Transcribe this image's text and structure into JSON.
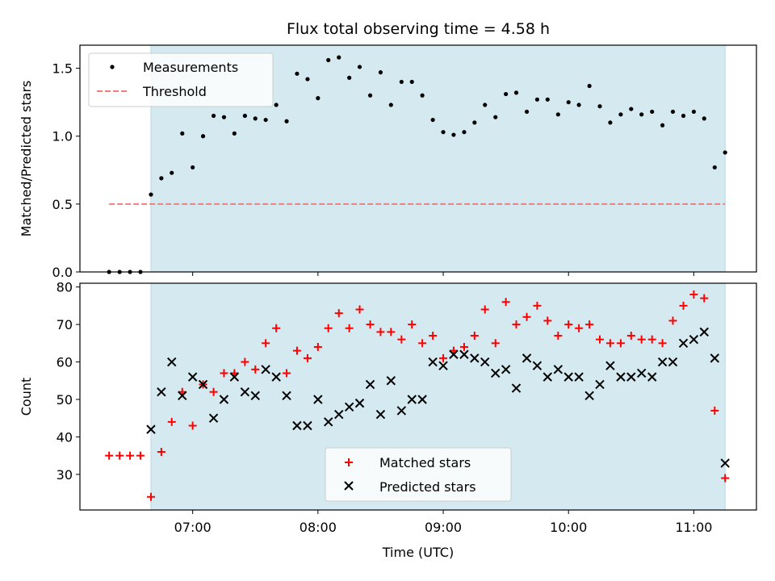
{
  "chart_data": [
    {
      "type": "scatter",
      "title": "Flux total observing time = 4.58 h",
      "xlabel": "",
      "ylabel": "Matched/Predicted stars",
      "xlim": [
        6.1,
        11.5
      ],
      "ylim": [
        0.0,
        1.67
      ],
      "yticks": [
        {
          "value": 0.0,
          "label": "0.0"
        },
        {
          "value": 0.5,
          "label": "0.5"
        },
        {
          "value": 1.0,
          "label": "1.0"
        },
        {
          "value": 1.5,
          "label": "1.5"
        }
      ],
      "xticks": [
        7,
        8,
        9,
        10,
        11
      ],
      "observing_window": {
        "start": 6.667,
        "end": 11.25,
        "color": "#d4eaf0"
      },
      "legend": {
        "position": "top-left",
        "entries": [
          "Measurements",
          "Threshold"
        ]
      },
      "threshold": {
        "name": "Threshold",
        "value": 0.5,
        "x_range": [
          6.333,
          11.25
        ],
        "color": "#f07f7f"
      },
      "series": [
        {
          "name": "Measurements",
          "marker": "dot",
          "color": "#000000",
          "points": [
            [
              6.333,
              0.0
            ],
            [
              6.417,
              0.0
            ],
            [
              6.5,
              0.0
            ],
            [
              6.583,
              0.0
            ],
            [
              6.667,
              0.57
            ],
            [
              6.75,
              0.69
            ],
            [
              6.833,
              0.73
            ],
            [
              6.917,
              1.02
            ],
            [
              7.0,
              0.77
            ],
            [
              7.083,
              1.0
            ],
            [
              7.167,
              1.15
            ],
            [
              7.25,
              1.14
            ],
            [
              7.333,
              1.02
            ],
            [
              7.417,
              1.15
            ],
            [
              7.5,
              1.13
            ],
            [
              7.583,
              1.12
            ],
            [
              7.667,
              1.23
            ],
            [
              7.75,
              1.11
            ],
            [
              7.833,
              1.46
            ],
            [
              7.917,
              1.42
            ],
            [
              8.0,
              1.28
            ],
            [
              8.083,
              1.56
            ],
            [
              8.167,
              1.58
            ],
            [
              8.25,
              1.43
            ],
            [
              8.333,
              1.51
            ],
            [
              8.417,
              1.3
            ],
            [
              8.5,
              1.47
            ],
            [
              8.583,
              1.23
            ],
            [
              8.667,
              1.4
            ],
            [
              8.75,
              1.4
            ],
            [
              8.833,
              1.3
            ],
            [
              8.917,
              1.12
            ],
            [
              9.0,
              1.03
            ],
            [
              9.083,
              1.01
            ],
            [
              9.167,
              1.03
            ],
            [
              9.25,
              1.1
            ],
            [
              9.333,
              1.23
            ],
            [
              9.417,
              1.14
            ],
            [
              9.5,
              1.31
            ],
            [
              9.583,
              1.32
            ],
            [
              9.667,
              1.18
            ],
            [
              9.75,
              1.27
            ],
            [
              9.833,
              1.27
            ],
            [
              9.917,
              1.16
            ],
            [
              10.0,
              1.25
            ],
            [
              10.083,
              1.23
            ],
            [
              10.167,
              1.37
            ],
            [
              10.25,
              1.22
            ],
            [
              10.333,
              1.1
            ],
            [
              10.417,
              1.16
            ],
            [
              10.5,
              1.2
            ],
            [
              10.583,
              1.16
            ],
            [
              10.667,
              1.18
            ],
            [
              10.75,
              1.08
            ],
            [
              10.833,
              1.18
            ],
            [
              10.917,
              1.15
            ],
            [
              11.0,
              1.18
            ],
            [
              11.083,
              1.13
            ],
            [
              11.167,
              0.77
            ],
            [
              11.25,
              0.88
            ]
          ]
        }
      ]
    },
    {
      "type": "scatter",
      "title": "",
      "xlabel": "Time (UTC)",
      "ylabel": "Count",
      "xlim": [
        6.1,
        11.5
      ],
      "ylim": [
        20.5,
        81
      ],
      "yticks": [
        {
          "value": 30,
          "label": "30"
        },
        {
          "value": 40,
          "label": "40"
        },
        {
          "value": 50,
          "label": "50"
        },
        {
          "value": 60,
          "label": "60"
        },
        {
          "value": 70,
          "label": "70"
        },
        {
          "value": 80,
          "label": "80"
        }
      ],
      "xticks": [
        {
          "value": 7,
          "label": "07:00"
        },
        {
          "value": 8,
          "label": "08:00"
        },
        {
          "value": 9,
          "label": "09:00"
        },
        {
          "value": 10,
          "label": "10:00"
        },
        {
          "value": 11,
          "label": "11:00"
        }
      ],
      "observing_window": {
        "start": 6.667,
        "end": 11.25,
        "color": "#d4eaf0"
      },
      "legend": {
        "position": "lower-center",
        "entries": [
          "Matched stars",
          "Predicted stars"
        ]
      },
      "series": [
        {
          "name": "Matched stars",
          "marker": "plus",
          "color": "#ff0000",
          "points": [
            [
              6.333,
              35
            ],
            [
              6.417,
              35
            ],
            [
              6.5,
              35
            ],
            [
              6.583,
              35
            ],
            [
              6.667,
              24
            ],
            [
              6.75,
              36
            ],
            [
              6.833,
              44
            ],
            [
              6.917,
              52
            ],
            [
              7.0,
              43
            ],
            [
              7.083,
              54
            ],
            [
              7.167,
              52
            ],
            [
              7.25,
              57
            ],
            [
              7.333,
              57
            ],
            [
              7.417,
              60
            ],
            [
              7.5,
              58
            ],
            [
              7.583,
              65
            ],
            [
              7.667,
              69
            ],
            [
              7.75,
              57
            ],
            [
              7.833,
              63
            ],
            [
              7.917,
              61
            ],
            [
              8.0,
              64
            ],
            [
              8.083,
              69
            ],
            [
              8.167,
              73
            ],
            [
              8.25,
              69
            ],
            [
              8.333,
              74
            ],
            [
              8.417,
              70
            ],
            [
              8.5,
              68
            ],
            [
              8.583,
              68
            ],
            [
              8.667,
              66
            ],
            [
              8.75,
              70
            ],
            [
              8.833,
              65
            ],
            [
              8.917,
              67
            ],
            [
              9.0,
              61
            ],
            [
              9.083,
              63
            ],
            [
              9.167,
              64
            ],
            [
              9.25,
              67
            ],
            [
              9.333,
              74
            ],
            [
              9.417,
              65
            ],
            [
              9.5,
              76
            ],
            [
              9.583,
              70
            ],
            [
              9.667,
              72
            ],
            [
              9.75,
              75
            ],
            [
              9.833,
              71
            ],
            [
              9.917,
              67
            ],
            [
              10.0,
              70
            ],
            [
              10.083,
              69
            ],
            [
              10.167,
              70
            ],
            [
              10.25,
              66
            ],
            [
              10.333,
              65
            ],
            [
              10.417,
              65
            ],
            [
              10.5,
              67
            ],
            [
              10.583,
              66
            ],
            [
              10.667,
              66
            ],
            [
              10.75,
              65
            ],
            [
              10.833,
              71
            ],
            [
              10.917,
              75
            ],
            [
              11.0,
              78
            ],
            [
              11.083,
              77
            ],
            [
              11.167,
              47
            ],
            [
              11.25,
              29
            ]
          ]
        },
        {
          "name": "Predicted stars",
          "marker": "x",
          "color": "#000000",
          "points": [
            [
              6.667,
              42
            ],
            [
              6.75,
              52
            ],
            [
              6.833,
              60
            ],
            [
              6.917,
              51
            ],
            [
              7.0,
              56
            ],
            [
              7.083,
              54
            ],
            [
              7.167,
              45
            ],
            [
              7.25,
              50
            ],
            [
              7.333,
              56
            ],
            [
              7.417,
              52
            ],
            [
              7.5,
              51
            ],
            [
              7.583,
              58
            ],
            [
              7.667,
              56
            ],
            [
              7.75,
              51
            ],
            [
              7.833,
              43
            ],
            [
              7.917,
              43
            ],
            [
              8.0,
              50
            ],
            [
              8.083,
              44
            ],
            [
              8.167,
              46
            ],
            [
              8.25,
              48
            ],
            [
              8.333,
              49
            ],
            [
              8.417,
              54
            ],
            [
              8.5,
              46
            ],
            [
              8.583,
              55
            ],
            [
              8.667,
              47
            ],
            [
              8.75,
              50
            ],
            [
              8.833,
              50
            ],
            [
              8.917,
              60
            ],
            [
              9.0,
              59
            ],
            [
              9.083,
              62
            ],
            [
              9.167,
              62
            ],
            [
              9.25,
              61
            ],
            [
              9.333,
              60
            ],
            [
              9.417,
              57
            ],
            [
              9.5,
              58
            ],
            [
              9.583,
              53
            ],
            [
              9.667,
              61
            ],
            [
              9.75,
              59
            ],
            [
              9.833,
              56
            ],
            [
              9.917,
              58
            ],
            [
              10.0,
              56
            ],
            [
              10.083,
              56
            ],
            [
              10.167,
              51
            ],
            [
              10.25,
              54
            ],
            [
              10.333,
              59
            ],
            [
              10.417,
              56
            ],
            [
              10.5,
              56
            ],
            [
              10.583,
              57
            ],
            [
              10.667,
              56
            ],
            [
              10.75,
              60
            ],
            [
              10.833,
              60
            ],
            [
              10.917,
              65
            ],
            [
              11.0,
              66
            ],
            [
              11.083,
              68
            ],
            [
              11.167,
              61
            ],
            [
              11.25,
              33
            ]
          ]
        }
      ]
    }
  ]
}
